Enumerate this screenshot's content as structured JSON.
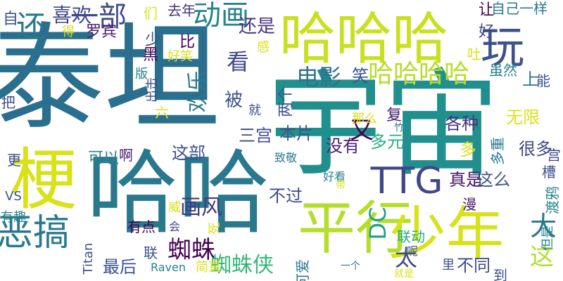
{
  "colors": {
    "background": "#ffffff",
    "palette": [
      "#440154",
      "#3b528b",
      "#21918c",
      "#2a788e",
      "#27ad81",
      "#5dc863",
      "#aadc32",
      "#d8e219"
    ]
  },
  "words": [
    {
      "text": "泰坦",
      "color": "#2a6f8e",
      "rotate": false
    },
    {
      "text": "宇宙",
      "color": "#218f8d",
      "rotate": false
    },
    {
      "text": "哈哈",
      "color": "#2a788e",
      "rotate": false
    },
    {
      "text": "哈哈哈",
      "color": "#c8e020",
      "rotate": false
    },
    {
      "text": "玩",
      "color": "#3b528b",
      "rotate": false
    },
    {
      "text": "平行",
      "color": "#b5de2b",
      "rotate": false
    },
    {
      "text": "少年",
      "color": "#d8e219",
      "rotate": false
    },
    {
      "text": "梗",
      "color": "#d8e219",
      "rotate": false
    },
    {
      "text": "恶搞",
      "color": "#2a788e",
      "rotate": false
    },
    {
      "text": "TTG",
      "color": "#404688",
      "rotate": false
    },
    {
      "text": "哈哈哈哈",
      "color": "#b5de2b",
      "rotate": false
    },
    {
      "text": "电影",
      "color": "#2c728e",
      "rotate": false
    },
    {
      "text": "动画",
      "color": "#26828e",
      "rotate": false
    },
    {
      "text": "一部",
      "color": "#3e4a89",
      "rotate": false
    },
    {
      "text": "还是",
      "color": "#46337e",
      "rotate": false
    },
    {
      "text": "还",
      "color": "#2a788e",
      "rotate": false
    },
    {
      "text": "喜欢",
      "color": "#404688",
      "rotate": false
    },
    {
      "text": "罗宾",
      "color": "#481d6f",
      "rotate": false
    },
    {
      "text": "蜘蛛",
      "color": "#440154",
      "rotate": false
    },
    {
      "text": "蜘蛛侠",
      "color": "#35b779",
      "rotate": false
    },
    {
      "text": "画风",
      "color": "#443983",
      "rotate": false
    },
    {
      "text": "本片",
      "color": "#39568c",
      "rotate": false
    },
    {
      "text": "三宫",
      "color": "#3e4a89",
      "rotate": false
    },
    {
      "text": "DC",
      "color": "#1f9e89",
      "rotate": true
    },
    {
      "text": "大",
      "color": "#2a788e",
      "rotate": false
    },
    {
      "text": "这",
      "color": "#b5de2b",
      "rotate": false
    },
    {
      "text": "太",
      "color": "#3e4a89",
      "rotate": false
    },
    {
      "text": "各种",
      "color": "#46337e",
      "rotate": false
    },
    {
      "text": "无限",
      "color": "#d8e219",
      "rotate": false
    },
    {
      "text": "多元",
      "color": "#27ad81",
      "rotate": false
    },
    {
      "text": "没有",
      "color": "#482173",
      "rotate": false
    },
    {
      "text": "又",
      "color": "#440154",
      "rotate": false
    },
    {
      "text": "很多",
      "color": "#404688",
      "rotate": false
    },
    {
      "text": "多",
      "color": "#d8e219",
      "rotate": false
    },
    {
      "text": "真是",
      "color": "#471365",
      "rotate": false
    },
    {
      "text": "这么",
      "color": "#39568c",
      "rotate": false
    },
    {
      "text": "不同",
      "color": "#3e4a89",
      "rotate": false
    },
    {
      "text": "最后",
      "color": "#3b528b",
      "rotate": false
    },
    {
      "text": "这部",
      "color": "#3b528b",
      "rotate": false
    },
    {
      "text": "不过",
      "color": "#3e4a89",
      "rotate": false
    },
    {
      "text": "可以",
      "color": "#26828e",
      "rotate": false
    },
    {
      "text": "看",
      "color": "#3e4a89",
      "rotate": false
    },
    {
      "text": "被",
      "color": "#3b528b",
      "rotate": false
    },
    {
      "text": "比",
      "color": "#440154",
      "rotate": false
    },
    {
      "text": "上",
      "color": "#2a788e",
      "rotate": false
    },
    {
      "text": "笑",
      "color": "#3b528b",
      "rotate": false
    },
    {
      "text": "让",
      "color": "#440154",
      "rotate": false
    },
    {
      "text": "好",
      "color": "#404688",
      "rotate": false
    },
    {
      "text": "自己一样",
      "color": "#2a788e",
      "rotate": false
    },
    {
      "text": "去年",
      "color": "#46337e",
      "rotate": false
    },
    {
      "text": "们",
      "color": "#d8e219",
      "rotate": false
    },
    {
      "text": "少",
      "color": "#3b528b",
      "rotate": false
    },
    {
      "text": "黑",
      "color": "#440154",
      "rotate": false
    },
    {
      "text": "好笑",
      "color": "#d8e219",
      "rotate": false
    },
    {
      "text": "版",
      "color": "#26828e",
      "rotate": false
    },
    {
      "text": "欢乐",
      "color": "#2a788e",
      "rotate": true
    },
    {
      "text": "出击",
      "color": "#3b528b",
      "rotate": true
    },
    {
      "text": "六",
      "color": "#d8e219",
      "rotate": false
    },
    {
      "text": "两个",
      "color": "#3b528b",
      "rotate": true
    },
    {
      "text": "就",
      "color": "#3b528b",
      "rotate": false
    },
    {
      "text": "复",
      "color": "#482173",
      "rotate": false
    },
    {
      "text": "那么",
      "color": "#d8e219",
      "rotate": false
    },
    {
      "text": "感",
      "color": "#d8e219",
      "rotate": false
    },
    {
      "text": "吐",
      "color": "#d8e219",
      "rotate": false
    },
    {
      "text": "虽然",
      "color": "#26828e",
      "rotate": false
    },
    {
      "text": "能",
      "color": "#3b528b",
      "rotate": false
    },
    {
      "text": "宫",
      "color": "#404688",
      "rotate": false
    },
    {
      "text": "槽",
      "color": "#3b528b",
      "rotate": false
    },
    {
      "text": "多重",
      "color": "#2a788e",
      "rotate": true
    },
    {
      "text": "得",
      "color": "#d8e219",
      "rotate": false
    },
    {
      "text": "自",
      "color": "#3b528b",
      "rotate": false
    },
    {
      "text": "把",
      "color": "#3e4a89",
      "rotate": false
    },
    {
      "text": "更",
      "color": "#3e4a89",
      "rotate": false
    },
    {
      "text": "啊",
      "color": "#481d6f",
      "rotate": false
    },
    {
      "text": "VS",
      "color": "#3b528b",
      "rotate": false
    },
    {
      "text": "有趣",
      "color": "#26828e",
      "rotate": false
    },
    {
      "text": "威",
      "color": "#d8e219",
      "rotate": false
    },
    {
      "text": "有点",
      "color": "#440154",
      "rotate": false
    },
    {
      "text": "会",
      "color": "#404688",
      "rotate": false
    },
    {
      "text": "死",
      "color": "#d8e219",
      "rotate": true
    },
    {
      "text": "联",
      "color": "#3b528b",
      "rotate": false
    },
    {
      "text": "Titan",
      "color": "#3b528b",
      "rotate": true
    },
    {
      "text": "Raven",
      "color": "#26828e",
      "rotate": false
    },
    {
      "text": "简直",
      "color": "#d8e219",
      "rotate": false
    },
    {
      "text": "可爱",
      "color": "#2a788e",
      "rotate": true
    },
    {
      "text": "一个",
      "color": "#2a788e",
      "rotate": false
    },
    {
      "text": "就是",
      "color": "#d8e219",
      "rotate": false
    },
    {
      "text": "里",
      "color": "#3b528b",
      "rotate": false
    },
    {
      "text": "到",
      "color": "#3b528b",
      "rotate": false
    },
    {
      "text": "漫",
      "color": "#482173",
      "rotate": false
    },
    {
      "text": "联动",
      "color": "#27ad81",
      "rotate": false
    },
    {
      "text": "呢",
      "color": "#3b528b",
      "rotate": false
    },
    {
      "text": "但是",
      "color": "#26828e",
      "rotate": true
    },
    {
      "text": "渡鸦",
      "color": "#26828e",
      "rotate": true
    },
    {
      "text": "致敬",
      "color": "#2a788e",
      "rotate": false
    },
    {
      "text": "好看",
      "color": "#26828e",
      "rotate": false
    },
    {
      "text": "带",
      "color": "#d8e219",
      "rotate": false
    },
    {
      "text": "竹",
      "color": "#2a788e",
      "rotate": false
    }
  ]
}
